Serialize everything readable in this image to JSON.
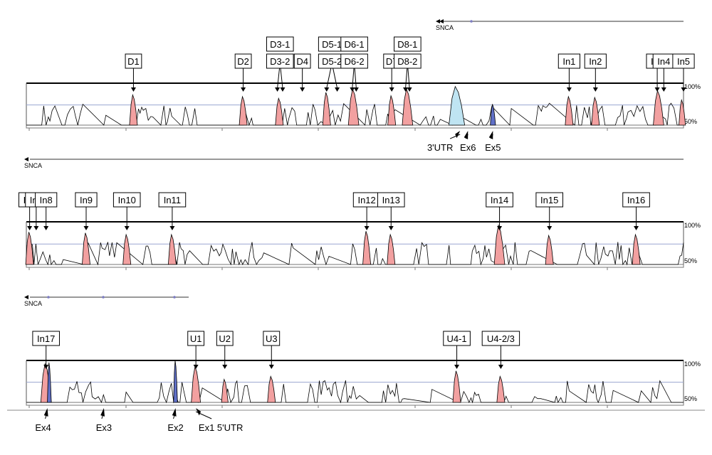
{
  "colors": {
    "conserved_peak": "#f2a0a0",
    "utr_peak": "#bfe4f2",
    "exon_peak": "#6070c8",
    "reference_line": "#9aa6d0",
    "frame": "#000000",
    "exon_mark": "#7c7cc0"
  },
  "gene_name": "SNCA",
  "scale": {
    "high": "100%",
    "low": "50%"
  },
  "panels": [
    {
      "gene_label": "SNCA",
      "box_labels": [
        {
          "lines": [
            "D1"
          ],
          "targets": [
            0.163
          ]
        },
        {
          "lines": [
            "D2"
          ],
          "targets": [
            0.33
          ]
        },
        {
          "lines": [
            "D3-2",
            "D3-1"
          ],
          "targets": [
            0.382,
            0.39
          ]
        },
        {
          "lines": [
            "D4"
          ],
          "targets": [
            0.42
          ]
        },
        {
          "lines": [
            "D5-2",
            "D5-1"
          ],
          "targets": [
            0.457,
            0.473
          ]
        },
        {
          "lines": [
            "D6-2",
            "D6-1"
          ],
          "targets": [
            0.496,
            0.502
          ]
        },
        {
          "lines": [
            "D7"
          ],
          "targets": [
            0.556
          ]
        },
        {
          "lines": [
            "D8-2",
            "D8-1"
          ],
          "targets": [
            0.577,
            0.583
          ]
        },
        {
          "lines": [
            "In1"
          ],
          "targets": [
            0.826
          ]
        },
        {
          "lines": [
            "In2"
          ],
          "targets": [
            0.866
          ]
        },
        {
          "lines": [
            "In3"
          ],
          "targets": [
            0.96
          ]
        },
        {
          "lines": [
            "In4"
          ],
          "targets": [
            0.97
          ]
        },
        {
          "lines": [
            "In5"
          ],
          "targets": [
            1.0
          ]
        }
      ],
      "bottom_labels": [
        {
          "text": "3'UTR",
          "target": 0.66
        },
        {
          "text": "Ex6",
          "target": 0.672
        },
        {
          "text": "Ex5",
          "target": 0.71
        }
      ],
      "peaks": [
        {
          "pos": 0.163,
          "height": 0.72,
          "width": 0.006,
          "kind": "conserved"
        },
        {
          "pos": 0.33,
          "height": 0.68,
          "width": 0.006,
          "kind": "conserved"
        },
        {
          "pos": 0.385,
          "height": 0.64,
          "width": 0.006,
          "kind": "conserved"
        },
        {
          "pos": 0.457,
          "height": 0.78,
          "width": 0.006,
          "kind": "conserved"
        },
        {
          "pos": 0.498,
          "height": 0.86,
          "width": 0.008,
          "kind": "conserved"
        },
        {
          "pos": 0.556,
          "height": 0.7,
          "width": 0.006,
          "kind": "conserved"
        },
        {
          "pos": 0.58,
          "height": 0.86,
          "width": 0.008,
          "kind": "conserved"
        },
        {
          "pos": 0.655,
          "height": 0.92,
          "width": 0.012,
          "kind": "utr"
        },
        {
          "pos": 0.71,
          "height": 0.5,
          "width": 0.004,
          "kind": "exon"
        },
        {
          "pos": 0.826,
          "height": 0.68,
          "width": 0.006,
          "kind": "conserved"
        },
        {
          "pos": 0.866,
          "height": 0.66,
          "width": 0.006,
          "kind": "conserved"
        },
        {
          "pos": 0.962,
          "height": 0.82,
          "width": 0.008,
          "kind": "conserved"
        },
        {
          "pos": 0.998,
          "height": 0.6,
          "width": 0.005,
          "kind": "conserved"
        }
      ]
    },
    {
      "gene_label": "SNCA",
      "box_labels": [
        {
          "lines": [
            "In6"
          ],
          "targets": [
            0.005
          ]
        },
        {
          "lines": [
            "In7"
          ],
          "targets": [
            0.015
          ]
        },
        {
          "lines": [
            "In8"
          ],
          "targets": [
            0.03
          ]
        },
        {
          "lines": [
            "In9"
          ],
          "targets": [
            0.091
          ]
        },
        {
          "lines": [
            "In10"
          ],
          "targets": [
            0.153
          ]
        },
        {
          "lines": [
            "In11"
          ],
          "targets": [
            0.222
          ]
        },
        {
          "lines": [
            "In12"
          ],
          "targets": [
            0.518
          ]
        },
        {
          "lines": [
            "In13"
          ],
          "targets": [
            0.555
          ]
        },
        {
          "lines": [
            "In14"
          ],
          "targets": [
            0.72
          ]
        },
        {
          "lines": [
            "In15"
          ],
          "targets": [
            0.796
          ]
        },
        {
          "lines": [
            "In16"
          ],
          "targets": [
            0.928
          ]
        }
      ],
      "bottom_labels": [],
      "peaks": [
        {
          "pos": 0.005,
          "height": 0.76,
          "width": 0.006,
          "kind": "conserved"
        },
        {
          "pos": 0.091,
          "height": 0.74,
          "width": 0.006,
          "kind": "conserved"
        },
        {
          "pos": 0.153,
          "height": 0.7,
          "width": 0.006,
          "kind": "conserved"
        },
        {
          "pos": 0.222,
          "height": 0.7,
          "width": 0.006,
          "kind": "conserved"
        },
        {
          "pos": 0.518,
          "height": 0.78,
          "width": 0.006,
          "kind": "conserved"
        },
        {
          "pos": 0.555,
          "height": 0.7,
          "width": 0.006,
          "kind": "conserved"
        },
        {
          "pos": 0.72,
          "height": 0.92,
          "width": 0.008,
          "kind": "conserved"
        },
        {
          "pos": 0.796,
          "height": 0.68,
          "width": 0.006,
          "kind": "conserved"
        },
        {
          "pos": 0.928,
          "height": 0.7,
          "width": 0.006,
          "kind": "conserved"
        }
      ]
    },
    {
      "gene_label": "SNCA",
      "box_labels": [
        {
          "lines": [
            "In17"
          ],
          "targets": [
            0.03
          ]
        },
        {
          "lines": [
            "U1"
          ],
          "targets": [
            0.258
          ]
        },
        {
          "lines": [
            "U2"
          ],
          "targets": [
            0.302
          ]
        },
        {
          "lines": [
            "U3"
          ],
          "targets": [
            0.373
          ]
        },
        {
          "lines": [
            "U4-1"
          ],
          "targets": [
            0.655
          ]
        },
        {
          "lines": [
            "U4-2/3"
          ],
          "targets": [
            0.722
          ]
        }
      ],
      "bottom_labels": [
        {
          "text": "Ex4",
          "target": 0.032
        },
        {
          "text": "Ex3",
          "target": 0.118
        },
        {
          "text": "Ex2",
          "target": 0.227
        },
        {
          "text": "Ex1 5'UTR",
          "target": 0.258
        }
      ],
      "peaks": [
        {
          "pos": 0.03,
          "height": 0.92,
          "width": 0.008,
          "kind": "conserved"
        },
        {
          "pos": 0.035,
          "height": 0.95,
          "width": 0.003,
          "kind": "exon"
        },
        {
          "pos": 0.227,
          "height": 1.0,
          "width": 0.003,
          "kind": "exon"
        },
        {
          "pos": 0.258,
          "height": 0.85,
          "width": 0.007,
          "kind": "conserved"
        },
        {
          "pos": 0.302,
          "height": 0.55,
          "width": 0.005,
          "kind": "conserved"
        },
        {
          "pos": 0.373,
          "height": 0.62,
          "width": 0.006,
          "kind": "conserved"
        },
        {
          "pos": 0.655,
          "height": 0.75,
          "width": 0.006,
          "kind": "conserved"
        },
        {
          "pos": 0.722,
          "height": 0.62,
          "width": 0.006,
          "kind": "conserved"
        }
      ]
    }
  ]
}
